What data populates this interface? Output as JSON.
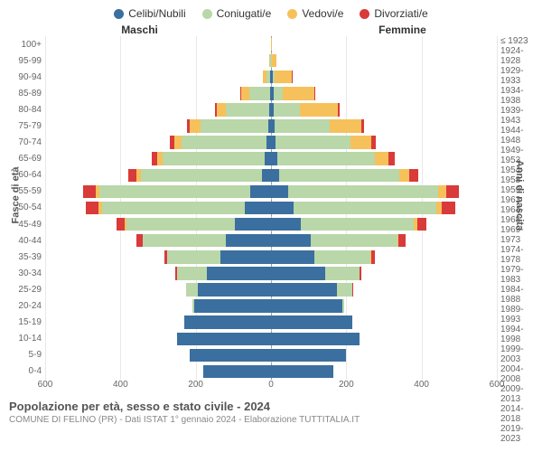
{
  "legend": [
    {
      "label": "Celibi/Nubili",
      "color": "#3b6fa0"
    },
    {
      "label": "Coniugati/e",
      "color": "#b9d7a8"
    },
    {
      "label": "Vedovi/e",
      "color": "#f6c15b"
    },
    {
      "label": "Divorziati/e",
      "color": "#d93a3a"
    }
  ],
  "headers": {
    "left": "Maschi",
    "right": "Femmine"
  },
  "yaxis_left_title": "Fasce di età",
  "yaxis_right_title": "Anni di nascita",
  "age_labels": [
    "100+",
    "95-99",
    "90-94",
    "85-89",
    "80-84",
    "75-79",
    "70-74",
    "65-69",
    "60-64",
    "55-59",
    "50-54",
    "45-49",
    "40-44",
    "35-39",
    "30-34",
    "25-29",
    "20-24",
    "15-19",
    "10-14",
    "5-9",
    "0-4"
  ],
  "birth_labels": [
    "≤ 1923",
    "1924-1928",
    "1929-1933",
    "1934-1938",
    "1939-1943",
    "1944-1948",
    "1949-1953",
    "1954-1958",
    "1959-1963",
    "1964-1968",
    "1969-1973",
    "1974-1978",
    "1979-1983",
    "1984-1988",
    "1989-1993",
    "1994-1998",
    "1999-2003",
    "2004-2008",
    "2009-2013",
    "2014-2018",
    "2019-2023"
  ],
  "xmax": 600,
  "xticks": [
    600,
    400,
    200,
    0,
    200,
    400,
    600
  ],
  "xtick_positions_pct": [
    0,
    16.67,
    33.33,
    50,
    66.67,
    83.33,
    100
  ],
  "grid_positions_pct": [
    0,
    16.67,
    33.33,
    50,
    66.67,
    83.33,
    100
  ],
  "males": [
    {
      "single": 0,
      "married": 0,
      "widowed": 0,
      "divorced": 0
    },
    {
      "single": 0,
      "married": 3,
      "widowed": 2,
      "divorced": 0
    },
    {
      "single": 2,
      "married": 10,
      "widowed": 10,
      "divorced": 0
    },
    {
      "single": 3,
      "married": 55,
      "widowed": 22,
      "divorced": 2
    },
    {
      "single": 5,
      "married": 115,
      "widowed": 25,
      "divorced": 5
    },
    {
      "single": 8,
      "married": 180,
      "widowed": 28,
      "divorced": 8
    },
    {
      "single": 12,
      "married": 225,
      "widowed": 20,
      "divorced": 12
    },
    {
      "single": 18,
      "married": 270,
      "widowed": 15,
      "divorced": 15
    },
    {
      "single": 25,
      "married": 320,
      "widowed": 12,
      "divorced": 22
    },
    {
      "single": 55,
      "married": 400,
      "widowed": 10,
      "divorced": 35
    },
    {
      "single": 70,
      "married": 380,
      "widowed": 8,
      "divorced": 35
    },
    {
      "single": 95,
      "married": 290,
      "widowed": 4,
      "divorced": 22
    },
    {
      "single": 120,
      "married": 220,
      "widowed": 2,
      "divorced": 15
    },
    {
      "single": 135,
      "married": 140,
      "widowed": 0,
      "divorced": 8
    },
    {
      "single": 170,
      "married": 80,
      "widowed": 0,
      "divorced": 4
    },
    {
      "single": 195,
      "married": 30,
      "widowed": 0,
      "divorced": 1
    },
    {
      "single": 205,
      "married": 3,
      "widowed": 0,
      "divorced": 0
    },
    {
      "single": 230,
      "married": 0,
      "widowed": 0,
      "divorced": 0
    },
    {
      "single": 250,
      "married": 0,
      "widowed": 0,
      "divorced": 0
    },
    {
      "single": 215,
      "married": 0,
      "widowed": 0,
      "divorced": 0
    },
    {
      "single": 180,
      "married": 0,
      "widowed": 0,
      "divorced": 0
    }
  ],
  "females": [
    {
      "single": 0,
      "married": 0,
      "widowed": 3,
      "divorced": 0
    },
    {
      "single": 1,
      "married": 1,
      "widowed": 12,
      "divorced": 0
    },
    {
      "single": 4,
      "married": 6,
      "widowed": 45,
      "divorced": 1
    },
    {
      "single": 6,
      "married": 25,
      "widowed": 85,
      "divorced": 2
    },
    {
      "single": 8,
      "married": 70,
      "widowed": 100,
      "divorced": 4
    },
    {
      "single": 10,
      "married": 145,
      "widowed": 85,
      "divorced": 8
    },
    {
      "single": 12,
      "married": 200,
      "widowed": 55,
      "divorced": 12
    },
    {
      "single": 16,
      "married": 260,
      "widowed": 35,
      "divorced": 18
    },
    {
      "single": 22,
      "married": 320,
      "widowed": 25,
      "divorced": 25
    },
    {
      "single": 45,
      "married": 400,
      "widowed": 20,
      "divorced": 35
    },
    {
      "single": 60,
      "married": 380,
      "widowed": 14,
      "divorced": 35
    },
    {
      "single": 80,
      "married": 300,
      "widowed": 8,
      "divorced": 25
    },
    {
      "single": 105,
      "married": 230,
      "widowed": 4,
      "divorced": 18
    },
    {
      "single": 115,
      "married": 150,
      "widowed": 2,
      "divorced": 10
    },
    {
      "single": 145,
      "married": 90,
      "widowed": 0,
      "divorced": 5
    },
    {
      "single": 175,
      "married": 40,
      "widowed": 0,
      "divorced": 1
    },
    {
      "single": 190,
      "married": 5,
      "widowed": 0,
      "divorced": 0
    },
    {
      "single": 215,
      "married": 0,
      "widowed": 0,
      "divorced": 0
    },
    {
      "single": 235,
      "married": 0,
      "widowed": 0,
      "divorced": 0
    },
    {
      "single": 200,
      "married": 0,
      "widowed": 0,
      "divorced": 0
    },
    {
      "single": 165,
      "married": 0,
      "widowed": 0,
      "divorced": 0
    }
  ],
  "title": "Popolazione per età, sesso e stato civile - 2024",
  "subtitle": "COMUNE DI FELINO (PR) - Dati ISTAT 1° gennaio 2024 - Elaborazione TUTTITALIA.IT"
}
